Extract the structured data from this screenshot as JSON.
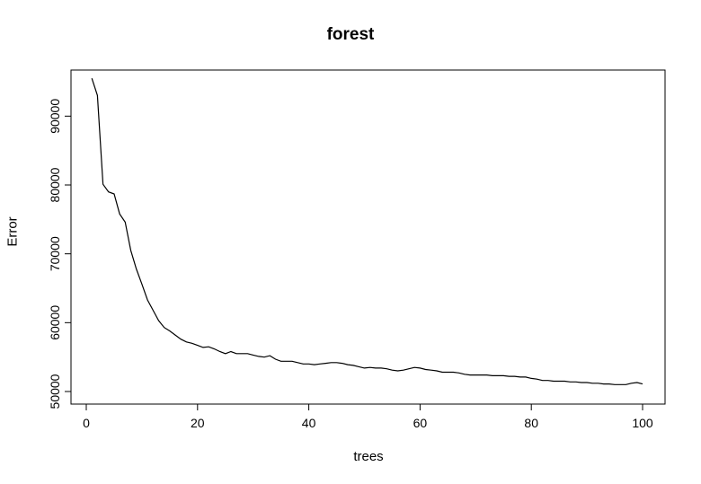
{
  "chart_data": {
    "type": "line",
    "title": "forest",
    "xlabel": "trees",
    "ylabel": "Error",
    "xlim": [
      0,
      100
    ],
    "ylim": [
      50000,
      95000
    ],
    "xticks": [
      0,
      20,
      40,
      60,
      80,
      100
    ],
    "yticks": [
      50000,
      60000,
      70000,
      80000,
      90000
    ],
    "grid": false,
    "legend": "none",
    "line_color": "#000000",
    "series": [
      {
        "x": [
          1,
          2,
          3,
          4,
          5,
          6,
          7,
          8,
          9,
          10,
          11,
          12,
          13,
          14,
          15,
          16,
          17,
          18,
          19,
          20,
          21,
          22,
          23,
          24,
          25,
          26,
          27,
          28,
          29,
          30,
          31,
          32,
          33,
          34,
          35,
          36,
          37,
          38,
          39,
          40,
          41,
          42,
          43,
          44,
          45,
          46,
          47,
          48,
          49,
          50,
          51,
          52,
          53,
          54,
          55,
          56,
          57,
          58,
          59,
          60,
          61,
          62,
          63,
          64,
          65,
          66,
          67,
          68,
          69,
          70,
          71,
          72,
          73,
          74,
          75,
          76,
          77,
          78,
          79,
          80,
          81,
          82,
          83,
          84,
          85,
          86,
          87,
          88,
          89,
          90,
          91,
          92,
          93,
          94,
          95,
          96,
          97,
          98,
          99,
          100
        ],
        "values": [
          95500,
          93000,
          80100,
          79000,
          78700,
          75800,
          74600,
          70500,
          67800,
          65600,
          63300,
          61800,
          60300,
          59300,
          58800,
          58200,
          57600,
          57200,
          57000,
          56700,
          56400,
          56500,
          56200,
          55800,
          55500,
          55800,
          55500,
          55500,
          55500,
          55300,
          55100,
          55000,
          55200,
          54700,
          54400,
          54400,
          54400,
          54200,
          54000,
          54000,
          53900,
          54000,
          54100,
          54200,
          54200,
          54100,
          53900,
          53800,
          53600,
          53400,
          53500,
          53400,
          53400,
          53300,
          53100,
          53000,
          53100,
          53300,
          53500,
          53400,
          53200,
          53100,
          53000,
          52800,
          52800,
          52800,
          52700,
          52500,
          52400,
          52400,
          52400,
          52400,
          52300,
          52300,
          52300,
          52200,
          52200,
          52100,
          52100,
          51900,
          51800,
          51600,
          51600,
          51500,
          51500,
          51500,
          51400,
          51400,
          51300,
          51300,
          51200,
          51200,
          51100,
          51100,
          51000,
          51000,
          51000,
          51200,
          51300,
          51100
        ]
      }
    ]
  }
}
